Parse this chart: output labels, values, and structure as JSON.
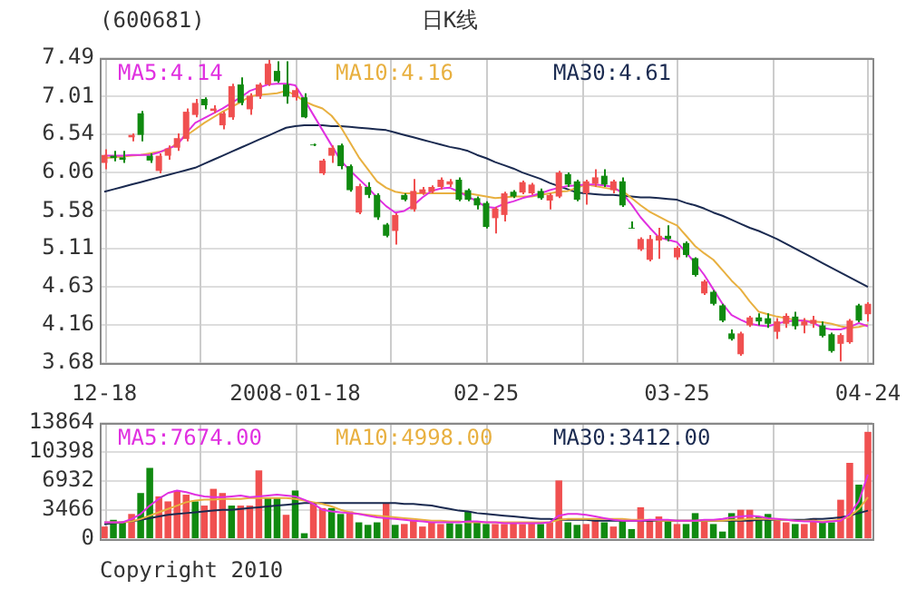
{
  "chart_data": [
    {
      "type": "candlestick",
      "title": "日K线",
      "subtitle": "(600681)",
      "categories": [
        "12-18",
        null,
        null,
        null,
        null,
        null,
        null,
        null,
        null,
        null,
        null,
        null,
        null,
        null,
        null,
        null,
        null,
        null,
        null,
        null,
        null,
        "2008-01-18",
        null,
        null,
        null,
        null,
        null,
        null,
        null,
        null,
        null,
        null,
        null,
        null,
        null,
        null,
        null,
        null,
        null,
        null,
        null,
        null,
        "02-25",
        null,
        null,
        null,
        null,
        null,
        null,
        null,
        null,
        null,
        null,
        null,
        null,
        null,
        null,
        null,
        null,
        null,
        null,
        null,
        null,
        "03-25",
        null,
        null,
        null,
        null,
        null,
        null,
        null,
        null,
        null,
        null,
        null,
        null,
        null,
        null,
        null,
        null,
        null,
        null,
        null,
        null,
        "04-24"
      ],
      "ohlc": [
        [
          6.18,
          6.35,
          6.1,
          6.28
        ],
        [
          6.27,
          6.33,
          6.2,
          6.24
        ],
        [
          6.25,
          6.33,
          6.18,
          6.22
        ],
        [
          6.5,
          6.55,
          6.45,
          6.53
        ],
        [
          6.8,
          6.83,
          6.45,
          6.53
        ],
        [
          6.27,
          6.3,
          6.18,
          6.21
        ],
        [
          6.08,
          6.3,
          6.05,
          6.27
        ],
        [
          6.27,
          6.4,
          6.22,
          6.36
        ],
        [
          6.37,
          6.55,
          6.33,
          6.49
        ],
        [
          6.48,
          6.86,
          6.45,
          6.82
        ],
        [
          6.78,
          6.98,
          6.75,
          6.93
        ],
        [
          6.98,
          7.0,
          6.85,
          6.9
        ],
        [
          6.83,
          6.9,
          6.8,
          6.86
        ],
        [
          6.65,
          6.82,
          6.6,
          6.8
        ],
        [
          6.75,
          7.17,
          6.72,
          7.14
        ],
        [
          7.16,
          7.25,
          6.9,
          6.93
        ],
        [
          6.85,
          7.05,
          6.78,
          7.02
        ],
        [
          7.01,
          7.18,
          6.98,
          7.16
        ],
        [
          7.16,
          7.49,
          7.14,
          7.42
        ],
        [
          7.33,
          7.45,
          7.18,
          7.2
        ],
        [
          7.16,
          7.45,
          6.92,
          7.01
        ],
        [
          7.0,
          7.12,
          6.96,
          7.09
        ],
        [
          7.0,
          7.05,
          6.74,
          6.75
        ],
        [
          6.41,
          6.42,
          6.39,
          6.4
        ],
        [
          6.05,
          6.23,
          6.03,
          6.21
        ],
        [
          6.27,
          6.4,
          6.18,
          6.37
        ],
        [
          6.4,
          6.42,
          6.1,
          6.14
        ],
        [
          6.14,
          6.16,
          5.82,
          5.84
        ],
        [
          5.56,
          5.92,
          5.54,
          5.89
        ],
        [
          5.88,
          5.94,
          5.74,
          5.78
        ],
        [
          5.78,
          5.8,
          5.47,
          5.5
        ],
        [
          5.41,
          5.43,
          5.25,
          5.27
        ],
        [
          5.33,
          5.55,
          5.16,
          5.53
        ],
        [
          5.78,
          5.8,
          5.7,
          5.72
        ],
        [
          5.6,
          5.98,
          5.57,
          5.83
        ],
        [
          5.8,
          5.88,
          5.78,
          5.85
        ],
        [
          5.82,
          5.9,
          5.8,
          5.88
        ],
        [
          5.88,
          6.0,
          5.85,
          5.97
        ],
        [
          5.91,
          5.98,
          5.88,
          5.95
        ],
        [
          5.97,
          6.0,
          5.7,
          5.72
        ],
        [
          5.84,
          5.86,
          5.7,
          5.72
        ],
        [
          5.74,
          5.76,
          5.6,
          5.65
        ],
        [
          5.68,
          5.7,
          5.36,
          5.38
        ],
        [
          5.49,
          5.63,
          5.3,
          5.61
        ],
        [
          5.53,
          5.82,
          5.45,
          5.8
        ],
        [
          5.82,
          5.84,
          5.74,
          5.76
        ],
        [
          5.81,
          5.96,
          5.79,
          5.94
        ],
        [
          5.8,
          5.93,
          5.78,
          5.91
        ],
        [
          5.83,
          5.86,
          5.72,
          5.74
        ],
        [
          5.71,
          5.8,
          5.6,
          5.78
        ],
        [
          5.76,
          6.08,
          5.74,
          6.06
        ],
        [
          6.04,
          6.06,
          5.88,
          5.91
        ],
        [
          5.95,
          5.97,
          5.7,
          5.72
        ],
        [
          5.8,
          5.97,
          5.66,
          5.95
        ],
        [
          5.92,
          6.1,
          5.88,
          6.0
        ],
        [
          6.02,
          6.1,
          5.88,
          5.91
        ],
        [
          5.84,
          5.97,
          5.8,
          5.95
        ],
        [
          5.95,
          6.0,
          5.63,
          5.65
        ],
        [
          5.37,
          5.45,
          5.36,
          5.36
        ],
        [
          5.1,
          5.25,
          5.08,
          5.23
        ],
        [
          4.97,
          5.28,
          4.95,
          5.23
        ],
        [
          5.21,
          5.37,
          4.98,
          5.27
        ],
        [
          5.27,
          5.4,
          5.2,
          5.23
        ],
        [
          5.0,
          5.14,
          4.97,
          5.12
        ],
        [
          5.18,
          5.2,
          5.0,
          5.03
        ],
        [
          4.99,
          5.0,
          4.76,
          4.78
        ],
        [
          4.55,
          4.72,
          4.53,
          4.7
        ],
        [
          4.57,
          4.59,
          4.4,
          4.42
        ],
        [
          4.4,
          4.42,
          4.19,
          4.21
        ],
        [
          4.05,
          4.1,
          3.96,
          3.98
        ],
        [
          3.79,
          4.07,
          3.77,
          4.05
        ],
        [
          4.15,
          4.27,
          4.13,
          4.25
        ],
        [
          4.25,
          4.3,
          4.15,
          4.2
        ],
        [
          4.24,
          4.3,
          4.12,
          4.17
        ],
        [
          4.07,
          4.24,
          3.98,
          4.2
        ],
        [
          4.17,
          4.3,
          4.12,
          4.27
        ],
        [
          4.26,
          4.32,
          4.1,
          4.14
        ],
        [
          4.15,
          4.24,
          4.05,
          4.2
        ],
        [
          4.17,
          4.27,
          4.12,
          4.22
        ],
        [
          4.15,
          4.2,
          4.0,
          4.02
        ],
        [
          4.04,
          4.06,
          3.81,
          3.83
        ],
        [
          3.92,
          4.05,
          3.7,
          4.03
        ],
        [
          3.94,
          4.23,
          3.92,
          4.21
        ],
        [
          4.4,
          4.42,
          4.19,
          4.21
        ],
        [
          4.29,
          4.44,
          4.2,
          4.42
        ]
      ],
      "colors": [
        "#f05050",
        "#108a10",
        "#108a10",
        "#f05050",
        "#108a10",
        "#108a10",
        "#f05050",
        "#f05050",
        "#f05050",
        "#f05050",
        "#f05050",
        "#108a10",
        "#f05050",
        "#f05050",
        "#f05050",
        "#108a10",
        "#f05050",
        "#f05050",
        "#f05050",
        "#108a10",
        "#108a10",
        "#f05050",
        "#108a10",
        "#108a10",
        "#f05050",
        "#f05050",
        "#108a10",
        "#108a10",
        "#f05050",
        "#108a10",
        "#108a10",
        "#108a10",
        "#f05050",
        "#108a10",
        "#f05050",
        "#f05050",
        "#f05050",
        "#f05050",
        "#f05050",
        "#108a10",
        "#108a10",
        "#108a10",
        "#108a10",
        "#f05050",
        "#f05050",
        "#108a10",
        "#f05050",
        "#f05050",
        "#108a10",
        "#f05050",
        "#f05050",
        "#108a10",
        "#108a10",
        "#f05050",
        "#f05050",
        "#108a10",
        "#f05050",
        "#108a10",
        "#108a10",
        "#f05050",
        "#f05050",
        "#f05050",
        "#108a10",
        "#f05050",
        "#108a10",
        "#108a10",
        "#f05050",
        "#108a10",
        "#108a10",
        "#108a10",
        "#f05050",
        "#f05050",
        "#108a10",
        "#108a10",
        "#f05050",
        "#f05050",
        "#108a10",
        "#f05050",
        "#f05050",
        "#108a10",
        "#108a10",
        "#f05050",
        "#f05050",
        "#108a10",
        "#f05050"
      ],
      "series": [
        {
          "name": "MA5:4.14",
          "type": "line",
          "color": "#e030e0",
          "values": [
            6.27,
            6.27,
            6.27,
            6.28,
            6.28,
            6.28,
            6.31,
            6.36,
            6.4,
            6.55,
            6.68,
            6.74,
            6.8,
            6.86,
            6.93,
            7.0,
            7.08,
            7.12,
            7.16,
            7.17,
            7.17,
            7.15,
            6.97,
            6.78,
            6.59,
            6.4,
            6.21,
            6.09,
            5.98,
            5.87,
            5.75,
            5.64,
            5.56,
            5.58,
            5.65,
            5.75,
            5.83,
            5.86,
            5.87,
            5.82,
            5.76,
            5.7,
            5.63,
            5.62,
            5.67,
            5.7,
            5.74,
            5.77,
            5.8,
            5.84,
            5.87,
            5.89,
            5.9,
            5.91,
            5.91,
            5.9,
            5.88,
            5.8,
            5.66,
            5.5,
            5.37,
            5.25,
            5.22,
            5.19,
            5.06,
            4.93,
            4.78,
            4.6,
            4.42,
            4.28,
            4.22,
            4.17,
            4.15,
            4.14,
            4.17,
            4.2,
            4.21,
            4.21,
            4.18,
            4.12,
            4.1,
            4.1,
            4.13,
            4.18,
            4.14
          ]
        },
        {
          "name": "MA10:4.16",
          "type": "line",
          "color": "#e8b040",
          "values": [
            6.24,
            6.25,
            6.26,
            6.27,
            6.28,
            6.3,
            6.32,
            6.34,
            6.43,
            6.52,
            6.6,
            6.68,
            6.75,
            6.82,
            6.88,
            6.94,
            7.01,
            7.03,
            7.04,
            7.05,
            7.08,
            7.03,
            6.95,
            6.9,
            6.86,
            6.77,
            6.63,
            6.44,
            6.25,
            6.1,
            5.95,
            5.87,
            5.82,
            5.8,
            5.8,
            5.8,
            5.8,
            5.8,
            5.8,
            5.8,
            5.8,
            5.78,
            5.76,
            5.74,
            5.75,
            5.76,
            5.76,
            5.76,
            5.78,
            5.8,
            5.82,
            5.83,
            5.87,
            5.91,
            5.89,
            5.87,
            5.85,
            5.83,
            5.74,
            5.65,
            5.57,
            5.51,
            5.45,
            5.4,
            5.27,
            5.14,
            5.05,
            4.97,
            4.84,
            4.71,
            4.6,
            4.45,
            4.32,
            4.29,
            4.26,
            4.24,
            4.22,
            4.21,
            4.2,
            4.19,
            4.17,
            4.14,
            4.12,
            4.13,
            4.16
          ]
        },
        {
          "name": "MA30:4.61",
          "type": "line",
          "color": "#1a2a50",
          "values": [
            5.82,
            5.85,
            5.88,
            5.91,
            5.94,
            5.97,
            6.0,
            6.03,
            6.06,
            6.09,
            6.12,
            6.17,
            6.22,
            6.27,
            6.32,
            6.37,
            6.42,
            6.47,
            6.52,
            6.57,
            6.62,
            6.64,
            6.65,
            6.65,
            6.65,
            6.64,
            6.64,
            6.63,
            6.62,
            6.61,
            6.6,
            6.59,
            6.56,
            6.53,
            6.5,
            6.47,
            6.44,
            6.41,
            6.38,
            6.36,
            6.33,
            6.28,
            6.24,
            6.19,
            6.15,
            6.11,
            6.06,
            6.02,
            5.98,
            5.93,
            5.89,
            5.85,
            5.81,
            5.8,
            5.79,
            5.78,
            5.78,
            5.77,
            5.76,
            5.75,
            5.75,
            5.74,
            5.73,
            5.72,
            5.68,
            5.65,
            5.61,
            5.56,
            5.52,
            5.47,
            5.42,
            5.37,
            5.33,
            5.28,
            5.23,
            5.17,
            5.11,
            5.05,
            4.99,
            4.93,
            4.87,
            4.81,
            4.75,
            4.69,
            4.63
          ]
        }
      ],
      "ylim": [
        3.68,
        7.49
      ],
      "yticks": [
        3.68,
        4.16,
        4.63,
        5.11,
        5.58,
        6.06,
        6.54,
        7.01,
        7.49
      ],
      "grid": true,
      "legend": "top"
    },
    {
      "type": "bar",
      "tick_labels": "y",
      "categories": [
        null,
        null,
        null,
        null,
        null,
        null,
        null,
        null,
        null,
        null,
        null,
        null,
        null,
        null,
        null,
        null,
        null,
        null,
        null,
        null,
        null,
        null,
        null,
        null,
        null,
        null,
        null,
        null,
        null,
        null,
        null,
        null,
        null,
        null,
        null,
        null,
        null,
        null,
        null,
        null,
        null,
        null,
        null,
        null,
        null,
        null,
        null,
        null,
        null,
        null,
        null,
        null,
        null,
        null,
        null,
        null,
        null,
        null,
        null,
        null,
        null,
        null,
        null,
        null,
        null,
        null,
        null,
        null,
        null,
        null,
        null,
        null,
        null,
        null,
        null,
        null,
        null,
        null,
        null,
        null,
        null,
        null,
        null,
        null,
        null
      ],
      "values": [
        1500,
        2300,
        2000,
        3000,
        5500,
        8500,
        5100,
        4500,
        5800,
        5300,
        4500,
        4000,
        6000,
        5500,
        4000,
        4000,
        4000,
        8200,
        4900,
        4900,
        2900,
        5800,
        700,
        4300,
        3700,
        3700,
        3000,
        3300,
        2000,
        1700,
        2000,
        4300,
        1700,
        1800,
        2300,
        1500,
        2000,
        1800,
        1900,
        1800,
        3300,
        2000,
        1800,
        1800,
        1800,
        2000,
        1800,
        2000,
        1800,
        2000,
        7000,
        2000,
        1700,
        1800,
        2300,
        2000,
        1500,
        2200,
        1200,
        3800,
        2300,
        2700,
        2200,
        1800,
        1800,
        3100,
        2300,
        1800,
        900,
        3100,
        3500,
        3500,
        2700,
        3000,
        2500,
        2000,
        1800,
        1800,
        2500,
        2000,
        2000,
        4700,
        9100,
        6500,
        12800
      ],
      "colors": [
        "#f05050",
        "#108a10",
        "#108a10",
        "#f05050",
        "#108a10",
        "#108a10",
        "#f05050",
        "#f05050",
        "#f05050",
        "#f05050",
        "#108a10",
        "#f05050",
        "#f05050",
        "#f05050",
        "#108a10",
        "#f05050",
        "#f05050",
        "#f05050",
        "#108a10",
        "#108a10",
        "#f05050",
        "#108a10",
        "#108a10",
        "#f05050",
        "#f05050",
        "#108a10",
        "#108a10",
        "#f05050",
        "#108a10",
        "#108a10",
        "#108a10",
        "#f05050",
        "#108a10",
        "#f05050",
        "#f05050",
        "#f05050",
        "#f05050",
        "#f05050",
        "#108a10",
        "#108a10",
        "#108a10",
        "#108a10",
        "#108a10",
        "#f05050",
        "#f05050",
        "#f05050",
        "#f05050",
        "#f05050",
        "#108a10",
        "#f05050",
        "#f05050",
        "#108a10",
        "#108a10",
        "#f05050",
        "#f05050",
        "#108a10",
        "#f05050",
        "#108a10",
        "#108a10",
        "#f05050",
        "#f05050",
        "#f05050",
        "#108a10",
        "#f05050",
        "#108a10",
        "#108a10",
        "#f05050",
        "#108a10",
        "#108a10",
        "#108a10",
        "#f05050",
        "#f05050",
        "#108a10",
        "#108a10",
        "#f05050",
        "#f05050",
        "#108a10",
        "#f05050",
        "#f05050",
        "#108a10",
        "#108a10",
        "#f05050",
        "#f05050",
        "#108a10",
        "#f05050"
      ],
      "series": [
        {
          "name": "MA5:7674.00",
          "type": "line",
          "color": "#e030e0",
          "values": [
            2000,
            2000,
            2000,
            2400,
            3000,
            4000,
            4800,
            5500,
            5800,
            5600,
            5300,
            5100,
            5000,
            5000,
            5100,
            5200,
            5000,
            5100,
            5200,
            5300,
            5200,
            5100,
            4700,
            4200,
            3500,
            3300,
            3200,
            3100,
            3000,
            2800,
            2600,
            2500,
            2400,
            2300,
            2200,
            2100,
            2000,
            2000,
            2000,
            2000,
            2100,
            2100,
            2000,
            2000,
            1900,
            1900,
            1900,
            1900,
            1900,
            2000,
            2800,
            3000,
            3000,
            2900,
            2700,
            2500,
            2300,
            2200,
            2200,
            2200,
            2300,
            2300,
            2300,
            2200,
            2200,
            2200,
            2300,
            2300,
            2400,
            2600,
            2700,
            2800,
            2700,
            2500,
            2400,
            2300,
            2200,
            2100,
            2100,
            2000,
            2100,
            2200,
            3000,
            4500,
            7700
          ]
        },
        {
          "name": "MA10:4998.00",
          "type": "line",
          "color": "#e8b040",
          "values": [
            2000,
            2000,
            2000,
            2100,
            2400,
            2800,
            3200,
            3600,
            4000,
            4400,
            4600,
            4700,
            4700,
            4800,
            4800,
            4800,
            4900,
            4900,
            4900,
            4900,
            4900,
            4800,
            4600,
            4400,
            4200,
            3900,
            3500,
            3200,
            3000,
            2900,
            2800,
            2700,
            2600,
            2500,
            2400,
            2300,
            2200,
            2200,
            2100,
            2100,
            2000,
            2000,
            2000,
            2000,
            2000,
            2000,
            2000,
            2000,
            2000,
            2000,
            2300,
            2400,
            2400,
            2400,
            2400,
            2400,
            2400,
            2400,
            2300,
            2300,
            2300,
            2200,
            2200,
            2200,
            2200,
            2200,
            2200,
            2200,
            2200,
            2300,
            2300,
            2400,
            2400,
            2400,
            2300,
            2300,
            2200,
            2200,
            2200,
            2100,
            2200,
            2300,
            2700,
            3600,
            5000
          ]
        },
        {
          "name": "MA30:3412.00",
          "type": "line",
          "color": "#1a2a50",
          "values": [
            1800,
            1900,
            2000,
            2100,
            2300,
            2500,
            2700,
            2900,
            3000,
            3100,
            3200,
            3300,
            3400,
            3500,
            3500,
            3600,
            3700,
            3800,
            3900,
            4000,
            4100,
            4200,
            4300,
            4300,
            4300,
            4300,
            4300,
            4300,
            4300,
            4300,
            4300,
            4300,
            4300,
            4200,
            4200,
            4100,
            4000,
            3800,
            3600,
            3400,
            3300,
            3100,
            3000,
            2900,
            2800,
            2700,
            2600,
            2500,
            2400,
            2400,
            2300,
            2300,
            2300,
            2300,
            2200,
            2200,
            2200,
            2200,
            2200,
            2200,
            2200,
            2200,
            2200,
            2200,
            2200,
            2200,
            2200,
            2200,
            2200,
            2200,
            2200,
            2200,
            2300,
            2300,
            2300,
            2300,
            2300,
            2300,
            2400,
            2400,
            2500,
            2600,
            2800,
            3100,
            3400
          ]
        }
      ],
      "ylim": [
        0,
        13864
      ],
      "yticks": [
        0,
        3466,
        6932,
        10398,
        13864
      ],
      "grid": true,
      "legend": "top",
      "annotations": [
        "Copyright 2010"
      ]
    }
  ]
}
